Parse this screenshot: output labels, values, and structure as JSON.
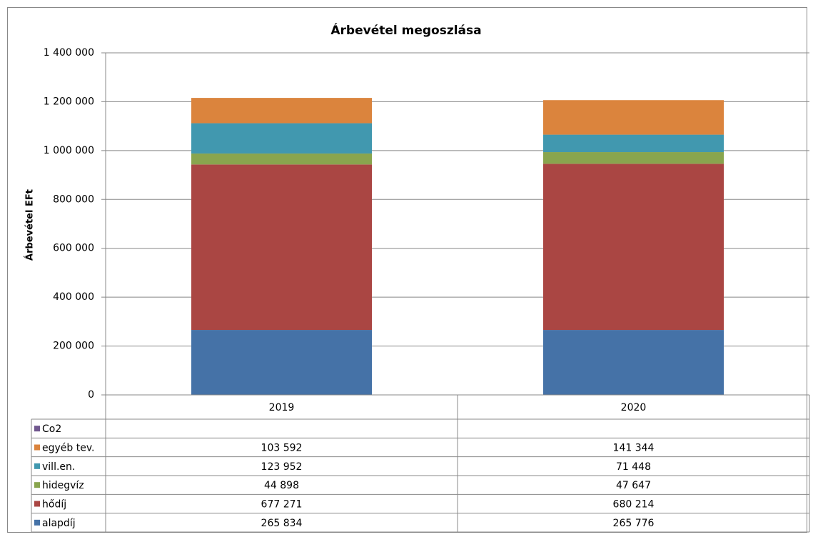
{
  "chart_data": {
    "type": "bar",
    "stacked": true,
    "title": "Árbevétel megoszlása",
    "y_label": "Árbevétel EFt",
    "categories": [
      "2019",
      "2020"
    ],
    "series": [
      {
        "name": "alapdíj",
        "color": "#4572a7",
        "values": [
          265834,
          265776
        ],
        "value_labels": [
          "265 834",
          "265 776"
        ]
      },
      {
        "name": "hődíj",
        "color": "#aa4643",
        "values": [
          677271,
          680214
        ],
        "value_labels": [
          "677 271",
          "680 214"
        ]
      },
      {
        "name": "hidegvíz",
        "color": "#89a54e",
        "values": [
          44898,
          47647
        ],
        "value_labels": [
          "44 898",
          "47 647"
        ]
      },
      {
        "name": "vill.en.",
        "color": "#4198af",
        "values": [
          123952,
          71448
        ],
        "value_labels": [
          "123 952",
          "71 448"
        ]
      },
      {
        "name": "egyéb tev.",
        "color": "#db843d",
        "values": [
          103592,
          141344
        ],
        "value_labels": [
          "103 592",
          "141 344"
        ]
      },
      {
        "name": "Co2",
        "color": "#71588f",
        "values": [
          null,
          null
        ]
      }
    ],
    "ylim": [
      0,
      1400000
    ],
    "yticks": [
      0,
      {
        "value": 200000,
        "label": "200 000"
      },
      {
        "value": 400000,
        "label": "400 000"
      },
      {
        "value": 600000,
        "label": "600 000"
      },
      {
        "value": 800000,
        "label": "800 000"
      },
      {
        "value": 1000000,
        "label": "1 000 000"
      },
      {
        "value": 1200000,
        "label": "1 200 000"
      },
      {
        "value": 1400000,
        "label": "1 400 000"
      }
    ],
    "grid": true
  }
}
